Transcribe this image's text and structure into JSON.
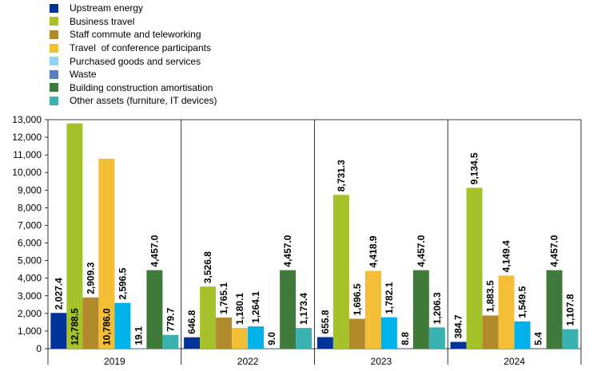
{
  "chart_data": {
    "type": "bar",
    "categories": [
      "2019",
      "2022",
      "2023",
      "2024"
    ],
    "ylim": [
      0,
      13000
    ],
    "yticks": [
      0,
      1000,
      2000,
      3000,
      4000,
      5000,
      6000,
      7000,
      8000,
      9000,
      10000,
      11000,
      12000,
      13000
    ],
    "ytick_labels": [
      "0",
      "1,000",
      "2,000",
      "3,000",
      "4,000",
      "5,000",
      "6,000",
      "7,000",
      "8,000",
      "9,000",
      "10,000",
      "11,000",
      "12,000",
      "13,000"
    ],
    "legend_position": "top-left",
    "grid": false,
    "series": [
      {
        "name": "Upstream energy",
        "color": "#003299",
        "values": [
          2027.4,
          646.8,
          655.8,
          384.7
        ],
        "labels": [
          "2,027.4",
          "646.8",
          "655.8",
          "384.7"
        ]
      },
      {
        "name": "Business travel",
        "color": "#a6c22b",
        "values": [
          12788.5,
          3526.8,
          8731.3,
          9134.5
        ],
        "labels": [
          "12,788.5",
          "3,526.8",
          "8,731.3",
          "9,134.5"
        ]
      },
      {
        "name": "Staff commute and teleworking",
        "color": "#b08a2b",
        "values": [
          2909.3,
          1765.1,
          1696.5,
          1883.5
        ],
        "labels": [
          "2,909.3",
          "1,765.1",
          "1,696.5",
          "1,883.5"
        ]
      },
      {
        "name": "Travel  of conference participants",
        "color": "#f4bf37",
        "values": [
          10786.0,
          1180.1,
          4418.9,
          4149.4
        ],
        "labels": [
          "10,786.0",
          "1,180.1",
          "4,418.9",
          "4,149.4"
        ]
      },
      {
        "name": "Purchased goods and services",
        "color": "#00b1ea",
        "legend_color": "#8fd3f5",
        "values": [
          2596.5,
          1264.1,
          1782.1,
          1549.5
        ],
        "labels": [
          "2,596.5",
          "1,264.1",
          "1,782.1",
          "1,549.5"
        ]
      },
      {
        "name": "Waste",
        "color": "#5e7dbf",
        "values": [
          19.1,
          9.0,
          8.8,
          5.4
        ],
        "labels": [
          "19.1",
          "9.0",
          "8.8",
          "5.4"
        ]
      },
      {
        "name": "Building construction amortisation",
        "color": "#3f7a3b",
        "values": [
          4457.0,
          4457.0,
          4457.0,
          4457.0
        ],
        "labels": [
          "4,457.0",
          "4,457.0",
          "4,457.0",
          "4,457.0"
        ]
      },
      {
        "name": "Other assets (furniture, IT devices)",
        "color": "#3ab2b2",
        "values": [
          779.7,
          1173.4,
          1206.3,
          1107.8
        ],
        "labels": [
          "779.7",
          "1,173.4",
          "1,206.3",
          "1,107.8"
        ]
      }
    ]
  }
}
